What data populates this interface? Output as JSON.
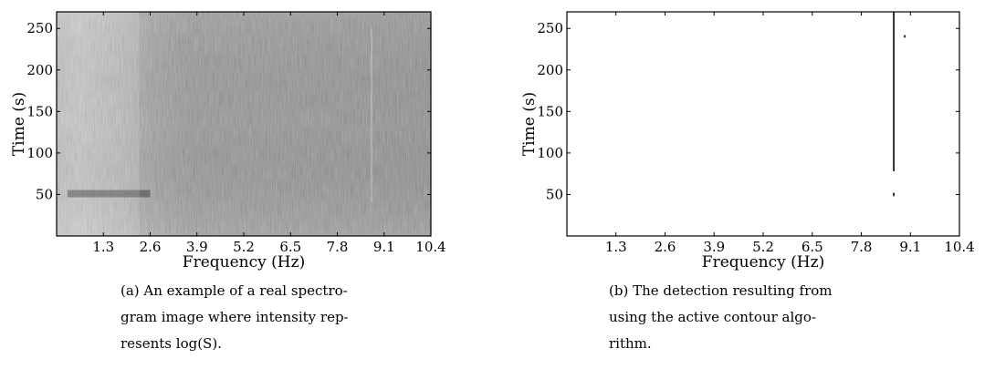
{
  "figures": [
    {
      "id": "a",
      "caption_lines": [
        "(a) An example of a real spectro-",
        "gram image where intensity rep-",
        "resents log(S)."
      ]
    },
    {
      "id": "b",
      "caption_lines": [
        "(b) The detection resulting from",
        "using the active contour algo-",
        "rithm."
      ]
    }
  ],
  "chart_data": [
    {
      "type": "heatmap",
      "title": "",
      "xlabel": "Frequency (Hz)",
      "ylabel": "Time (s)",
      "xticks": [
        "1.3",
        "2.6",
        "3.9",
        "5.2",
        "6.5",
        "7.8",
        "9.1",
        "10.4"
      ],
      "yticks": [
        "50",
        "100",
        "150",
        "200",
        "250"
      ],
      "xlim": [
        0,
        10.4
      ],
      "ylim": [
        0,
        270
      ],
      "colormap": "gray",
      "intensity": "log(S)",
      "features": [
        {
          "kind": "vertical-line",
          "frequency_hz": 8.75,
          "time_range": [
            40,
            250
          ],
          "brightness": "bright"
        },
        {
          "kind": "horizontal-band",
          "time_s": 51,
          "frequency_range": [
            0.3,
            2.6
          ],
          "brightness": "dark"
        },
        {
          "kind": "bright-region",
          "frequency_range": [
            0,
            2.3
          ],
          "time_range": [
            0,
            270
          ]
        }
      ]
    },
    {
      "type": "scatter",
      "title": "",
      "xlabel": "Frequency (Hz)",
      "ylabel": "Time (s)",
      "xticks": [
        "1.3",
        "2.6",
        "3.9",
        "5.2",
        "6.5",
        "7.8",
        "9.1",
        "10.4"
      ],
      "yticks": [
        "50",
        "100",
        "150",
        "200",
        "250"
      ],
      "xlim": [
        0,
        10.4
      ],
      "ylim": [
        0,
        270
      ],
      "segments": [
        {
          "x": 8.66,
          "y_range": [
            78,
            270
          ]
        },
        {
          "x": 8.66,
          "y_range": [
            48,
            52
          ]
        },
        {
          "x": 8.95,
          "y_range": [
            239,
            242
          ]
        }
      ]
    }
  ],
  "colors": {
    "background": "#ffffff",
    "axis": "#000000",
    "spectrogram_base": "#7a7a7a",
    "spectrogram_light": "#c8c8c8",
    "detection": "#000000"
  }
}
